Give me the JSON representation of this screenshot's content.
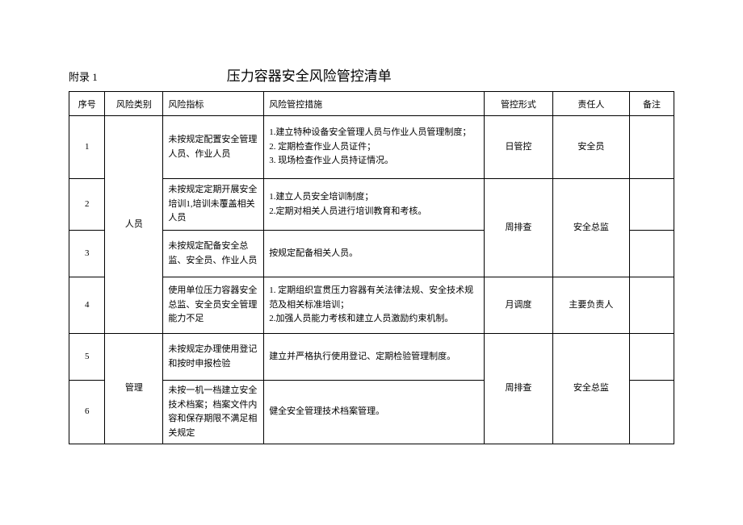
{
  "appendix_label": "附录 1",
  "title": "压力容器安全风险管控清单",
  "headers": {
    "seq": "序号",
    "category": "风险类别",
    "indicator": "风险指标",
    "measure": "风险管控措施",
    "form": "管控形式",
    "person": "责任人",
    "note": "备注"
  },
  "categories": {
    "personnel": "人员",
    "management": "管理"
  },
  "rows": {
    "r1": {
      "seq": "1",
      "indicator": "未按规定配置安全管理人员、作业人员",
      "measure": "1.建立特种设备安全管理人员与作业人员管理制度；\n2. 定期检查作业人员证件；\n3. 现场检查作业人员持证情况。",
      "form": "日管控",
      "person": "安全员",
      "note": ""
    },
    "r2": {
      "seq": "2",
      "indicator": "未按规定定期开展安全培训1,培训未覆盖相关人员",
      "measure": "1.建立人员安全培训制度；\n2.定期对相关人员进行培训教育和考核。",
      "form": "周排查",
      "person": "安全总监",
      "note": ""
    },
    "r3": {
      "seq": "3",
      "indicator": "未按规定配备安全总监、安全员、作业人员",
      "measure": "按规定配备相关人员。",
      "note": ""
    },
    "r4": {
      "seq": "4",
      "indicator": "使用单位压力容器安全总监、安全员安全管理能力不足",
      "measure": "1. 定期组织宣贯压力容器有关法律法规、安全技术规范及相关标准培训；\n2.加强人员能力考核和建立人员激励约束机制。",
      "form": "月调度",
      "person": "主要负责人",
      "note": ""
    },
    "r5": {
      "seq": "5",
      "indicator": "未按规定办理使用登记和按时申报检验",
      "measure": "建立并严格执行使用登记、定期检验管理制度。",
      "form": "周排查",
      "person": "安全总监",
      "note": ""
    },
    "r6": {
      "seq": "6",
      "indicator": "未按一机一档建立安全技术档案；档案文件内容和保存期限不满足相关规定",
      "measure": "健全安全管理技术档案管理。",
      "note": ""
    }
  },
  "style": {
    "page_bg": "#ffffff",
    "text_color": "#000000",
    "border_color": "#000000",
    "title_fontsize": 17,
    "body_fontsize": 11,
    "font_family": "SimSun"
  }
}
